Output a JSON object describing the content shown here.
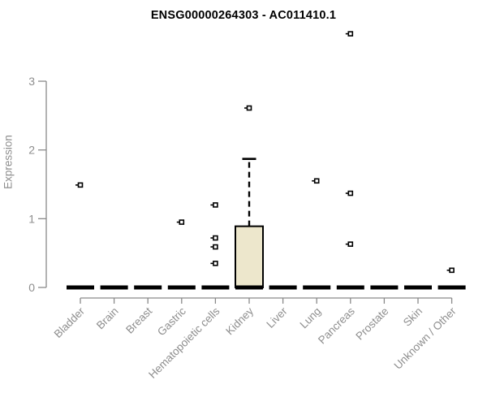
{
  "chart_data": {
    "type": "boxplot",
    "title": "ENSG00000264303 - AC011410.1",
    "ylabel": "Expression",
    "xlabel": "",
    "ylim": [
      0,
      3
    ],
    "yticks": [
      0,
      1,
      2,
      3
    ],
    "grid": false,
    "legend": "none",
    "colors": {
      "box_fill": "#EDE7CC",
      "box_stroke": "#000000",
      "axis": "#8a8a8a",
      "tick_label": "#8e8e8e",
      "title": "#000000"
    },
    "categories": [
      {
        "label": "Bladder",
        "q1": 0,
        "median": 0,
        "q3": 0,
        "whisker_low": 0,
        "whisker_high": 0,
        "outliers": [
          1.49
        ]
      },
      {
        "label": "Brain",
        "q1": 0,
        "median": 0,
        "q3": 0,
        "whisker_low": 0,
        "whisker_high": 0,
        "outliers": []
      },
      {
        "label": "Breast",
        "q1": 0,
        "median": 0,
        "q3": 0,
        "whisker_low": 0,
        "whisker_high": 0,
        "outliers": []
      },
      {
        "label": "Gastric",
        "q1": 0,
        "median": 0,
        "q3": 0,
        "whisker_low": 0,
        "whisker_high": 0,
        "outliers": [
          0.95
        ]
      },
      {
        "label": "Hematopoietic cells",
        "q1": 0,
        "median": 0,
        "q3": 0,
        "whisker_low": 0,
        "whisker_high": 0,
        "outliers": [
          1.2,
          0.72,
          0.59,
          0.35
        ]
      },
      {
        "label": "Kidney",
        "q1": 0,
        "median": 0,
        "q3": 0.89,
        "whisker_low": 0,
        "whisker_high": 1.87,
        "outliers": [
          2.61
        ]
      },
      {
        "label": "Liver",
        "q1": 0,
        "median": 0,
        "q3": 0,
        "whisker_low": 0,
        "whisker_high": 0,
        "outliers": []
      },
      {
        "label": "Lung",
        "q1": 0,
        "median": 0,
        "q3": 0,
        "whisker_low": 0,
        "whisker_high": 0,
        "outliers": [
          1.55
        ]
      },
      {
        "label": "Pancreas",
        "q1": 0,
        "median": 0,
        "q3": 0,
        "whisker_low": 0,
        "whisker_high": 0,
        "outliers": [
          3.69,
          1.37,
          0.63
        ]
      },
      {
        "label": "Prostate",
        "q1": 0,
        "median": 0,
        "q3": 0,
        "whisker_low": 0,
        "whisker_high": 0,
        "outliers": []
      },
      {
        "label": "Skin",
        "q1": 0,
        "median": 0,
        "q3": 0,
        "whisker_low": 0,
        "whisker_high": 0,
        "outliers": []
      },
      {
        "label": "Unknown / Other",
        "q1": 0,
        "median": 0,
        "q3": 0,
        "whisker_low": 0,
        "whisker_high": 0,
        "outliers": [
          0.25
        ]
      }
    ]
  }
}
